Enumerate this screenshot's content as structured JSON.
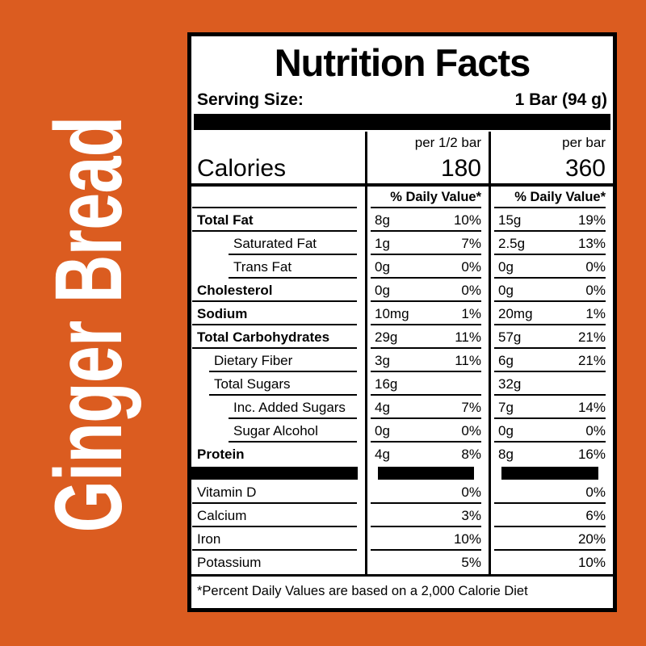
{
  "page": {
    "background_color": "#DB5C20"
  },
  "side_text": {
    "text": "Ginger Bread",
    "color": "#FFFFFF"
  },
  "label": {
    "title": "Nutrition Facts",
    "serving": {
      "label": "Serving Size:",
      "value": "1 Bar (94 g)"
    },
    "column_headers": {
      "half": "per 1/2 bar",
      "full": "per bar"
    },
    "calories": {
      "label": "Calories",
      "half": "180",
      "full": "360"
    },
    "daily_value_header": {
      "half": "% Daily Value*",
      "full": "% Daily Value*"
    },
    "nutrients": [
      {
        "name": "Total Fat",
        "amount_half": "8g",
        "dv_half": "10%",
        "amount_full": "15g",
        "dv_full": "19%"
      },
      {
        "name": "Saturated Fat",
        "amount_half": "1g",
        "dv_half": "7%",
        "amount_full": "2.5g",
        "dv_full": "13%"
      },
      {
        "name": "Trans Fat",
        "amount_half": "0g",
        "dv_half": "0%",
        "amount_full": "0g",
        "dv_full": "0%"
      },
      {
        "name": "Cholesterol",
        "amount_half": "0g",
        "dv_half": "0%",
        "amount_full": "0g",
        "dv_full": "0%"
      },
      {
        "name": "Sodium",
        "amount_half": "10mg",
        "dv_half": "1%",
        "amount_full": "20mg",
        "dv_full": "1%"
      },
      {
        "name": "Total Carbohydrates",
        "amount_half": "29g",
        "dv_half": "11%",
        "amount_full": "57g",
        "dv_full": "21%"
      },
      {
        "name": "Dietary Fiber",
        "amount_half": "3g",
        "dv_half": "11%",
        "amount_full": "6g",
        "dv_full": "21%"
      },
      {
        "name": "Total Sugars",
        "amount_half": "16g",
        "dv_half": "",
        "amount_full": "32g",
        "dv_full": ""
      },
      {
        "name": "Inc. Added Sugars",
        "amount_half": "4g",
        "dv_half": "7%",
        "amount_full": "7g",
        "dv_full": "14%"
      },
      {
        "name": "Sugar Alcohol",
        "amount_half": "0g",
        "dv_half": "0%",
        "amount_full": "0g",
        "dv_full": "0%"
      },
      {
        "name": "Protein",
        "amount_half": "4g",
        "dv_half": "8%",
        "amount_full": "8g",
        "dv_full": "16%"
      }
    ],
    "vitamins": [
      {
        "name": "Vitamin D",
        "dv_half": "0%",
        "dv_full": "0%"
      },
      {
        "name": "Calcium",
        "dv_half": "3%",
        "dv_full": "6%"
      },
      {
        "name": "Iron",
        "dv_half": "10%",
        "dv_full": "20%"
      },
      {
        "name": "Potassium",
        "dv_half": "5%",
        "dv_full": "10%"
      }
    ],
    "footnote": "*Percent Daily Values are based on a 2,000 Calorie Diet"
  }
}
